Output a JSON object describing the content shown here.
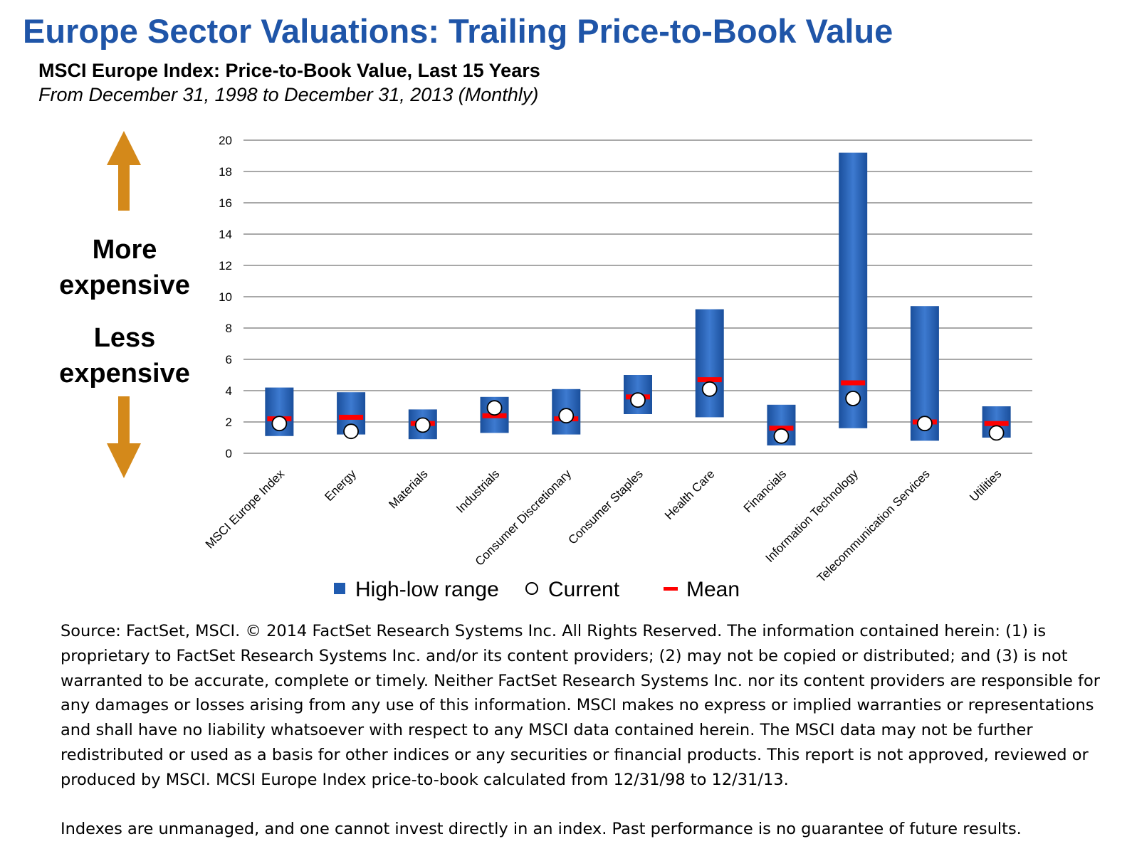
{
  "header": {
    "title": "Europe Sector Valuations: Trailing Price-to-Book Value",
    "subtitle": "MSCI Europe Index: Price-to-Book Value, Last 15 Years",
    "period": "From December 31, 1998 to December 31, 2013 (Monthly)"
  },
  "side_labels": {
    "more": [
      "More",
      "expensive"
    ],
    "less": [
      "Less",
      "expensive"
    ]
  },
  "colors": {
    "range": "#1f5bb0",
    "mean": "#ff0000",
    "arrow": "#d4891a",
    "title": "#1f55a8",
    "grid": "#8c8c8c"
  },
  "chart_data": {
    "type": "bar",
    "subtype": "floating range with markers",
    "categories": [
      "MSCI Europe Index",
      "Energy",
      "Materials",
      "Industrials",
      "Consumer Discretionary",
      "Consumer Staples",
      "Health Care",
      "Financials",
      "Information Technology",
      "Telecommunication Services",
      "Utilities"
    ],
    "series": [
      {
        "name": "High-low range",
        "kind": "range",
        "low": [
          1.1,
          1.2,
          0.9,
          1.3,
          1.2,
          2.5,
          2.3,
          0.5,
          1.6,
          0.8,
          1.0
        ],
        "high": [
          4.2,
          3.9,
          2.8,
          3.6,
          4.1,
          5.0,
          9.2,
          3.1,
          19.2,
          9.4,
          3.0
        ]
      },
      {
        "name": "Current",
        "kind": "marker",
        "values": [
          1.9,
          1.4,
          1.8,
          2.9,
          2.4,
          3.4,
          4.1,
          1.1,
          3.5,
          1.9,
          1.3
        ]
      },
      {
        "name": "Mean",
        "kind": "dash",
        "values": [
          2.2,
          2.3,
          1.9,
          2.4,
          2.2,
          3.6,
          4.7,
          1.6,
          4.5,
          2.0,
          1.9
        ]
      }
    ],
    "ylim": [
      0,
      20
    ],
    "yticks": [
      0,
      2,
      4,
      6,
      8,
      10,
      12,
      14,
      16,
      18,
      20
    ],
    "grid": true,
    "legend_position": "bottom"
  },
  "footnote": {
    "source": "Source: FactSet, MSCI. © 2014 FactSet Research Systems Inc. All Rights Reserved. The information contained herein: (1) is proprietary to FactSet Research Systems Inc. and/or its content providers; (2) may not be copied or distributed; and (3) is not warranted to be accurate, complete or timely. Neither FactSet Research Systems Inc. nor its content providers are responsible for any damages or losses arising from any use of this information. MSCI makes no express or implied warranties or representations and shall have no liability whatsoever with respect to any MSCI data contained herein. The MSCI data may not be further redistributed or used as a basis for other indices or any securities or financial products. This report is not approved, reviewed or produced by MSCI. MCSI Europe Index price-to-book calculated from 12/31/98 to 12/31/13.",
    "disclaimer": "Indexes are unmanaged, and one cannot invest directly in an index. Past performance is no guarantee of future results."
  }
}
